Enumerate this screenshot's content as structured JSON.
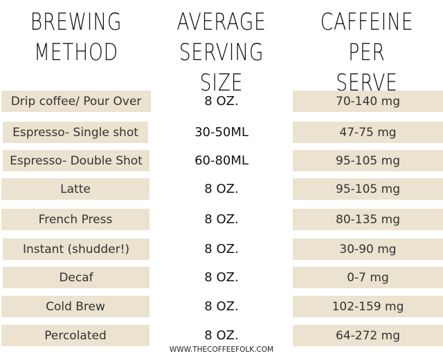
{
  "header": {
    "columns": [
      {
        "lines": [
          "BREWING",
          "METHOD"
        ]
      },
      {
        "lines": [
          "AVERAGE",
          "SERVING SIZE"
        ]
      },
      {
        "lines": [
          "CAFFEINE PER",
          "SERVE"
        ]
      }
    ]
  },
  "table": {
    "rows": [
      [
        "Drip coffee/ Pour Over",
        "8 OZ.",
        "70-140 mg"
      ],
      [
        "Espresso- Single shot",
        "30-50ML",
        "47-75 mg"
      ],
      [
        "Espresso- Double Shot",
        "60-80ML",
        "95-105 mg"
      ],
      [
        "Latte",
        "8 OZ.",
        "95-105 mg"
      ],
      [
        "French Press",
        "8 OZ.",
        "80-135 mg"
      ],
      [
        "Instant (shudder!)",
        "8 OZ.",
        "30-90 mg"
      ],
      [
        "Decaf",
        "8 OZ.",
        "0-7 mg"
      ],
      [
        "Cold Brew",
        "8 OZ.",
        "102-159 mg"
      ],
      [
        "Percolated",
        "8 OZ.",
        "64-272 mg"
      ]
    ]
  },
  "footer": {
    "url": "WWW.THECOFFEEFOLK.COM"
  }
}
